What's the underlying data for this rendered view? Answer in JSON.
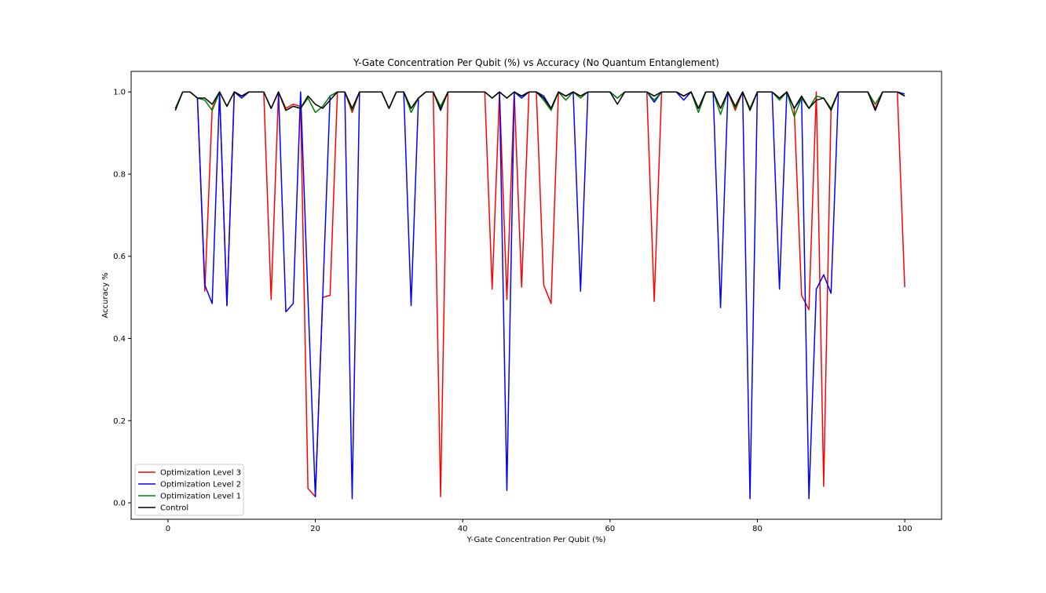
{
  "chart_data": {
    "type": "line",
    "title": "Y-Gate Concentration Per Qubit (%) vs Accuracy (No Quantum Entanglement)",
    "xlabel": "Y-Gate Concentration Per Qubit (%)",
    "ylabel": "Accuracy %",
    "xlim": [
      -5,
      105
    ],
    "ylim": [
      -0.04,
      1.05
    ],
    "xticks": [
      0,
      20,
      40,
      60,
      80,
      100
    ],
    "yticks": [
      0.0,
      0.2,
      0.4,
      0.6,
      0.8,
      1.0
    ],
    "grid": false,
    "legend_position": "lower-left",
    "x": [
      1,
      2,
      3,
      4,
      5,
      6,
      7,
      8,
      9,
      10,
      11,
      12,
      13,
      14,
      15,
      16,
      17,
      18,
      19,
      20,
      21,
      22,
      23,
      24,
      25,
      26,
      27,
      28,
      29,
      30,
      31,
      32,
      33,
      34,
      35,
      36,
      37,
      38,
      39,
      40,
      41,
      42,
      43,
      44,
      45,
      46,
      47,
      48,
      49,
      50,
      51,
      52,
      53,
      54,
      55,
      56,
      57,
      58,
      59,
      60,
      61,
      62,
      63,
      64,
      65,
      66,
      67,
      68,
      69,
      70,
      71,
      72,
      73,
      74,
      75,
      76,
      77,
      78,
      79,
      80,
      81,
      82,
      83,
      84,
      85,
      86,
      87,
      88,
      89,
      90,
      91,
      92,
      93,
      94,
      95,
      96,
      97,
      98,
      99,
      100
    ],
    "series": [
      {
        "name": "Optimization Level 3",
        "color": "#ff0000",
        "values": [
          0.96,
          1.0,
          1.0,
          0.985,
          0.515,
          0.96,
          1.0,
          0.48,
          1.0,
          0.99,
          1.0,
          1.0,
          1.0,
          0.495,
          1.0,
          0.96,
          0.97,
          0.965,
          0.035,
          0.015,
          0.5,
          0.505,
          1.0,
          1.0,
          0.95,
          1.0,
          1.0,
          1.0,
          1.0,
          0.96,
          1.0,
          1.0,
          0.96,
          0.985,
          1.0,
          1.0,
          0.015,
          1.0,
          1.0,
          1.0,
          1.0,
          1.0,
          1.0,
          0.52,
          1.0,
          0.495,
          1.0,
          0.525,
          1.0,
          1.0,
          0.53,
          0.485,
          1.0,
          0.99,
          1.0,
          0.99,
          1.0,
          1.0,
          1.0,
          1.0,
          0.985,
          1.0,
          1.0,
          1.0,
          1.0,
          0.49,
          1.0,
          1.0,
          1.0,
          0.99,
          1.0,
          0.96,
          1.0,
          1.0,
          0.96,
          1.0,
          0.955,
          1.0,
          0.96,
          1.0,
          1.0,
          1.0,
          0.985,
          1.0,
          0.96,
          0.505,
          0.47,
          1.0,
          0.04,
          0.96,
          1.0,
          1.0,
          1.0,
          1.0,
          1.0,
          0.96,
          1.0,
          1.0,
          1.0,
          0.525
        ]
      },
      {
        "name": "Optimization Level 2",
        "color": "#0000ff",
        "values": [
          0.96,
          1.0,
          1.0,
          0.985,
          0.53,
          0.485,
          1.0,
          0.48,
          1.0,
          0.985,
          1.0,
          1.0,
          1.0,
          0.96,
          1.0,
          0.465,
          0.485,
          1.0,
          0.5,
          0.015,
          0.5,
          0.99,
          1.0,
          1.0,
          0.01,
          1.0,
          1.0,
          1.0,
          1.0,
          0.96,
          1.0,
          1.0,
          0.48,
          0.985,
          1.0,
          1.0,
          0.96,
          1.0,
          1.0,
          1.0,
          1.0,
          1.0,
          1.0,
          0.985,
          1.0,
          0.03,
          1.0,
          0.985,
          1.0,
          1.0,
          0.99,
          0.96,
          1.0,
          0.99,
          1.0,
          0.515,
          1.0,
          1.0,
          1.0,
          1.0,
          0.985,
          1.0,
          1.0,
          1.0,
          1.0,
          0.975,
          1.0,
          1.0,
          1.0,
          0.98,
          1.0,
          0.96,
          1.0,
          1.0,
          0.475,
          1.0,
          0.965,
          1.0,
          0.01,
          1.0,
          1.0,
          1.0,
          0.52,
          1.0,
          0.96,
          0.985,
          0.01,
          0.52,
          0.555,
          0.51,
          1.0,
          1.0,
          1.0,
          1.0,
          1.0,
          0.955,
          1.0,
          1.0,
          1.0,
          0.995
        ]
      },
      {
        "name": "Optimization Level 1",
        "color": "#008000",
        "values": [
          0.96,
          1.0,
          1.0,
          0.985,
          0.98,
          0.955,
          1.0,
          0.965,
          1.0,
          0.99,
          1.0,
          1.0,
          1.0,
          0.96,
          1.0,
          0.955,
          0.965,
          0.96,
          0.985,
          0.95,
          0.965,
          0.99,
          1.0,
          1.0,
          0.955,
          1.0,
          1.0,
          1.0,
          1.0,
          0.96,
          1.0,
          1.0,
          0.95,
          0.985,
          1.0,
          1.0,
          0.965,
          1.0,
          1.0,
          1.0,
          1.0,
          1.0,
          1.0,
          0.985,
          1.0,
          0.985,
          1.0,
          0.99,
          1.0,
          1.0,
          0.98,
          0.955,
          1.0,
          0.98,
          1.0,
          0.985,
          1.0,
          1.0,
          1.0,
          1.0,
          0.985,
          1.0,
          1.0,
          1.0,
          1.0,
          0.98,
          1.0,
          1.0,
          1.0,
          0.99,
          1.0,
          0.95,
          1.0,
          1.0,
          0.945,
          1.0,
          0.96,
          1.0,
          0.96,
          1.0,
          1.0,
          1.0,
          0.98,
          1.0,
          0.94,
          0.985,
          0.96,
          0.99,
          0.985,
          0.96,
          1.0,
          1.0,
          1.0,
          1.0,
          1.0,
          0.97,
          1.0,
          1.0,
          1.0,
          0.99
        ]
      },
      {
        "name": "Control",
        "color": "#000000",
        "values": [
          0.955,
          1.0,
          1.0,
          0.985,
          0.985,
          0.97,
          1.0,
          0.965,
          1.0,
          0.99,
          1.0,
          1.0,
          1.0,
          0.96,
          1.0,
          0.955,
          0.965,
          0.96,
          0.99,
          0.97,
          0.96,
          0.98,
          1.0,
          1.0,
          0.96,
          1.0,
          1.0,
          1.0,
          1.0,
          0.96,
          1.0,
          1.0,
          0.96,
          0.985,
          1.0,
          1.0,
          0.955,
          1.0,
          1.0,
          1.0,
          1.0,
          1.0,
          1.0,
          0.985,
          1.0,
          0.985,
          1.0,
          0.99,
          1.0,
          1.0,
          0.985,
          0.96,
          1.0,
          0.99,
          1.0,
          0.99,
          1.0,
          1.0,
          1.0,
          1.0,
          0.97,
          1.0,
          1.0,
          1.0,
          1.0,
          0.99,
          1.0,
          1.0,
          1.0,
          0.99,
          1.0,
          0.96,
          1.0,
          1.0,
          0.96,
          1.0,
          0.965,
          1.0,
          0.955,
          1.0,
          1.0,
          1.0,
          0.985,
          1.0,
          0.96,
          0.99,
          0.96,
          0.98,
          0.985,
          0.955,
          1.0,
          1.0,
          1.0,
          1.0,
          1.0,
          0.955,
          1.0,
          1.0,
          1.0,
          0.99
        ]
      }
    ]
  }
}
